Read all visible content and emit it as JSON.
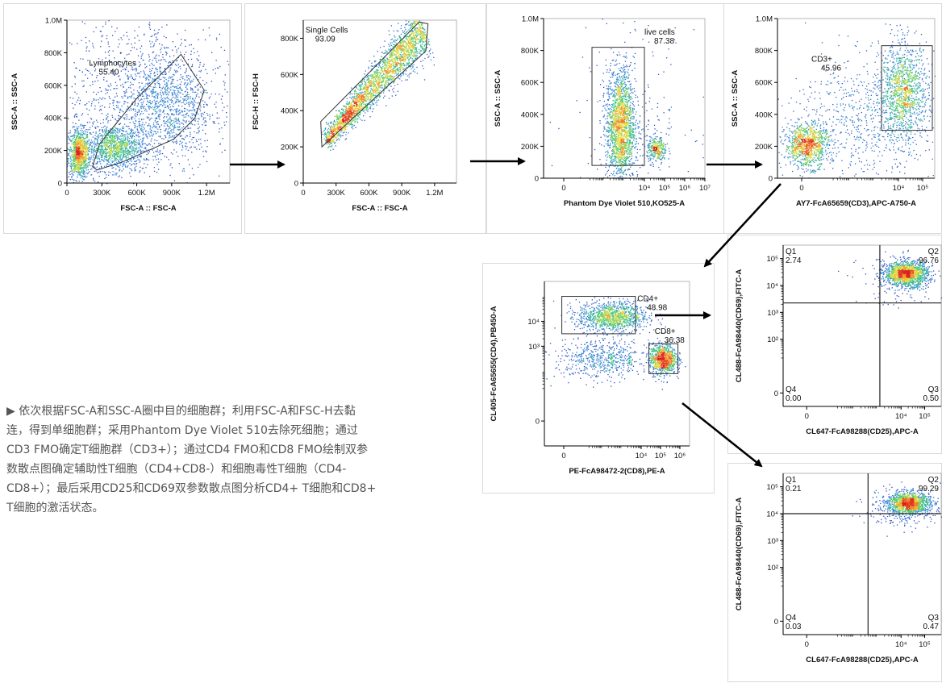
{
  "description": "▶ 依次根据FSC-A和SSC-A圈中目的细胞群；利用FSC-A和FSC-H去黏连，得到单细胞群；采用Phantom Dye Violet 510去除死细胞；通过CD3 FMO确定T细胞群（CD3+）；通过CD4 FMO和CD8 FMO绘制双参数散点图确定辅助性T细胞（CD4+CD8-）和细胞毒性T细胞（CD4-CD8+）；最后采用CD25和CD69双参数散点图分析CD4+ T细胞和CD8+ T细胞的激活状态。",
  "colors": {
    "arrow": "#000000",
    "gate": "#333333",
    "quadrant": "#222222"
  },
  "chart_data": [
    {
      "id": "p1",
      "type": "scatter",
      "xlabel": "FSC-A :: FSC-A",
      "ylabel": "SSC-A :: SSC-A",
      "xscale": "linear",
      "yscale": "linear",
      "xlim": [
        0,
        1400000
      ],
      "ylim": [
        0,
        1000000
      ],
      "xticks": [
        {
          "v": 0,
          "t": "0"
        },
        {
          "v": 300000,
          "t": "300K"
        },
        {
          "v": 600000,
          "t": "600K"
        },
        {
          "v": 900000,
          "t": "900K"
        },
        {
          "v": 1200000,
          "t": "1.2M"
        }
      ],
      "yticks": [
        {
          "v": 0,
          "t": "0"
        },
        {
          "v": 200000,
          "t": "200K"
        },
        {
          "v": 400000,
          "t": "400K"
        },
        {
          "v": 600000,
          "t": "600K"
        },
        {
          "v": 800000,
          "t": "800K"
        },
        {
          "v": 1000000,
          "t": "1.0M"
        }
      ],
      "clusters": [
        {
          "cx": 100000,
          "cy": 180000,
          "sx": 45000,
          "sy": 75000,
          "n": 900
        },
        {
          "cx": 400000,
          "cy": 220000,
          "sx": 130000,
          "sy": 70000,
          "n": 1100
        },
        {
          "cx": 850000,
          "cy": 480000,
          "sx": 200000,
          "sy": 170000,
          "n": 1100
        },
        {
          "cx": 600000,
          "cy": 550000,
          "sx": 400000,
          "sy": 260000,
          "n": 900
        }
      ],
      "gates": [
        {
          "name": "Lymphocytes",
          "value": "55.40",
          "shape": "polygon",
          "points": [
            [
              220000,
              100000
            ],
            [
              280000,
              240000
            ],
            [
              600000,
              520000
            ],
            [
              980000,
              790000
            ],
            [
              1180000,
              570000
            ],
            [
              1100000,
              400000
            ],
            [
              920000,
              270000
            ],
            [
              480000,
              130000
            ],
            [
              260000,
              80000
            ]
          ],
          "label_at": [
            190000,
            720000
          ]
        }
      ]
    },
    {
      "id": "p2",
      "type": "scatter",
      "xlabel": "FSC-A :: FSC-A",
      "ylabel": "FSC-H :: FSC-H",
      "xscale": "linear",
      "yscale": "linear",
      "xlim": [
        0,
        1400000
      ],
      "ylim": [
        0,
        900000
      ],
      "xticks": [
        {
          "v": 0,
          "t": "0"
        },
        {
          "v": 300000,
          "t": "300K"
        },
        {
          "v": 600000,
          "t": "600K"
        },
        {
          "v": 900000,
          "t": "900K"
        },
        {
          "v": 1200000,
          "t": "1.2M"
        }
      ],
      "yticks": [
        {
          "v": 0,
          "t": "0"
        },
        {
          "v": 200000,
          "t": "200K"
        },
        {
          "v": 400000,
          "t": "400K"
        },
        {
          "v": 600000,
          "t": "600K"
        },
        {
          "v": 800000,
          "t": "800K"
        }
      ],
      "diag": {
        "x0": 200000,
        "y0": 230000,
        "x1": 1100000,
        "y1": 860000,
        "spread": 35000,
        "n": 2600
      },
      "gates": [
        {
          "name": "Single Cells",
          "value": "93.09",
          "shape": "polygon",
          "points": [
            [
              170000,
              200000
            ],
            [
              1120000,
              730000
            ],
            [
              1140000,
              880000
            ],
            [
              1060000,
              890000
            ],
            [
              160000,
              340000
            ]
          ],
          "label_at": [
            20000,
            830000
          ]
        }
      ]
    },
    {
      "id": "p3",
      "type": "scatter",
      "xlabel": "Phantom Dye Violet 510,KO525-A",
      "ylabel": "SSC-A :: SSC-A",
      "xscale": "biex",
      "yscale": "linear",
      "xlim": [
        -1,
        7
      ],
      "ylim": [
        0,
        1000000
      ],
      "xticks": [
        {
          "v": 0,
          "t": "0"
        },
        {
          "v": 4,
          "t": "10⁴"
        },
        {
          "v": 5,
          "t": "10⁵"
        },
        {
          "v": 6,
          "t": "10⁶"
        },
        {
          "v": 7,
          "t": "10⁷"
        }
      ],
      "yticks": [
        {
          "v": 0,
          "t": "0"
        },
        {
          "v": 200000,
          "t": "200K"
        },
        {
          "v": 400000,
          "t": "400K"
        },
        {
          "v": 600000,
          "t": "600K"
        },
        {
          "v": 800000,
          "t": "800K"
        },
        {
          "v": 1000000,
          "t": "1.0M"
        }
      ],
      "clusters": [
        {
          "cx": 2.8,
          "cy": 330000,
          "sx": 0.35,
          "sy": 180000,
          "n": 1900
        },
        {
          "cx": 4.6,
          "cy": 180000,
          "sx": 0.25,
          "sy": 40000,
          "n": 300
        },
        {
          "cx": 3.5,
          "cy": 400000,
          "sx": 1.5,
          "sy": 280000,
          "n": 200
        }
      ],
      "gates": [
        {
          "name": "live cells",
          "value": "87.38",
          "shape": "rect",
          "points": [
            [
              1.4,
              80000
            ],
            [
              4.0,
              820000
            ]
          ],
          "label_at": [
            4.0,
            900000
          ]
        }
      ]
    },
    {
      "id": "p4",
      "type": "scatter",
      "xlabel": "AY7-FcA65659(CD3),APC-A750-A",
      "ylabel": "SSC-A :: SSC-A",
      "xscale": "biex",
      "yscale": "linear",
      "xlim": [
        -1,
        5.5
      ],
      "ylim": [
        0,
        1000000
      ],
      "xticks": [
        {
          "v": 0,
          "t": "0"
        },
        {
          "v": 4,
          "t": "10⁴"
        },
        {
          "v": 5,
          "t": "10⁵"
        }
      ],
      "yticks": [
        {
          "v": 0,
          "t": "0"
        },
        {
          "v": 200000,
          "t": "200K"
        },
        {
          "v": 400000,
          "t": "400K"
        },
        {
          "v": 600000,
          "t": "600K"
        },
        {
          "v": 800000,
          "t": "800K"
        },
        {
          "v": 1000000,
          "t": "1.0M"
        }
      ],
      "clusters": [
        {
          "cx": 0.2,
          "cy": 210000,
          "sx": 0.45,
          "sy": 70000,
          "n": 1000
        },
        {
          "cx": 4.2,
          "cy": 540000,
          "sx": 0.5,
          "sy": 150000,
          "n": 1200
        },
        {
          "cx": 2.5,
          "cy": 380000,
          "sx": 1.5,
          "sy": 200000,
          "n": 700
        }
      ],
      "gates": [
        {
          "name": "CD3+",
          "value": "45.96",
          "shape": "rect",
          "points": [
            [
              3.3,
              300000
            ],
            [
              5.4,
              830000
            ]
          ],
          "label_at": [
            0.4,
            730000
          ]
        }
      ]
    },
    {
      "id": "p5",
      "type": "scatter",
      "xlabel": "PE-FcA98472-2(CD8),PE-A",
      "ylabel": "CL405-FcA65655(CD4),PB450-A",
      "xscale": "biex",
      "yscale": "biex",
      "xlim": [
        -1,
        6.5
      ],
      "ylim": [
        -1,
        5.6
      ],
      "xticks": [
        {
          "v": 0,
          "t": "0"
        },
        {
          "v": 4,
          "t": "10⁴"
        },
        {
          "v": 5,
          "t": "10⁵"
        },
        {
          "v": 6,
          "t": "10⁶"
        }
      ],
      "yticks": [
        {
          "v": 0,
          "t": "0"
        },
        {
          "v": 3,
          "t": "10³"
        },
        {
          "v": 4,
          "t": "10⁴"
        }
      ],
      "clusters": [
        {
          "cx": 2.5,
          "cy": 4.2,
          "sx": 0.9,
          "sy": 0.3,
          "n": 1100
        },
        {
          "cx": 5.1,
          "cy": 2.5,
          "sx": 0.35,
          "sy": 0.3,
          "n": 900
        },
        {
          "cx": 2.0,
          "cy": 2.5,
          "sx": 1.2,
          "sy": 0.4,
          "n": 600
        }
      ],
      "gates": [
        {
          "name": "CD4+",
          "value": "48.98",
          "shape": "rect",
          "points": [
            [
              -0.1,
              3.5
            ],
            [
              3.7,
              5.0
            ]
          ],
          "label_at": [
            3.8,
            4.8
          ]
        },
        {
          "name": "CD8+",
          "value": "36.38",
          "shape": "rect",
          "points": [
            [
              4.4,
              1.9
            ],
            [
              5.9,
              3.1
            ]
          ],
          "label_at": [
            4.7,
            3.5
          ]
        }
      ]
    },
    {
      "id": "p6",
      "type": "scatter",
      "xlabel": "CL647-FcA98288(CD25),APC-A",
      "ylabel": "CL488-FcA98440(CD69),FITC-A",
      "xscale": "biex",
      "yscale": "biex",
      "xlim": [
        -1,
        5.7
      ],
      "ylim": [
        -0.5,
        5.5
      ],
      "xticks": [
        {
          "v": 0,
          "t": "0"
        },
        {
          "v": 4,
          "t": "10⁴"
        },
        {
          "v": 5,
          "t": "10⁵"
        }
      ],
      "yticks": [
        {
          "v": 0,
          "t": "0"
        },
        {
          "v": 2,
          "t": "10²"
        },
        {
          "v": 3,
          "t": "10³"
        },
        {
          "v": 4,
          "t": "10⁴"
        },
        {
          "v": 5,
          "t": "10⁵"
        }
      ],
      "clusters": [
        {
          "cx": 4.2,
          "cy": 4.45,
          "sx": 0.45,
          "sy": 0.22,
          "n": 1400
        },
        {
          "cx": 4.0,
          "cy": 4.2,
          "sx": 0.9,
          "sy": 0.45,
          "n": 200
        }
      ],
      "quadrant": {
        "x": 3.1,
        "y": 3.35
      },
      "quadrants": [
        {
          "name": "Q1",
          "value": "2.74",
          "pos": "tl"
        },
        {
          "name": "Q2",
          "value": "96.76",
          "pos": "tr"
        },
        {
          "name": "Q4",
          "value": "0.00",
          "pos": "bl"
        },
        {
          "name": "Q3",
          "value": "0.50",
          "pos": "br"
        }
      ]
    },
    {
      "id": "p7",
      "type": "scatter",
      "xlabel": "CL647-FcA98288(CD25),APC-A",
      "ylabel": "CL488-FcA98440(CD69),FITC-A",
      "xscale": "biex",
      "yscale": "biex",
      "xlim": [
        -1,
        5.7
      ],
      "ylim": [
        -0.5,
        5.5
      ],
      "xticks": [
        {
          "v": 0,
          "t": "0"
        },
        {
          "v": 4,
          "t": "10⁴"
        },
        {
          "v": 5,
          "t": "10⁵"
        }
      ],
      "yticks": [
        {
          "v": 0,
          "t": "0"
        },
        {
          "v": 2,
          "t": "10²"
        },
        {
          "v": 3,
          "t": "10³"
        },
        {
          "v": 4,
          "t": "10⁴"
        },
        {
          "v": 5,
          "t": "10⁵"
        }
      ],
      "clusters": [
        {
          "cx": 4.3,
          "cy": 4.4,
          "sx": 0.45,
          "sy": 0.2,
          "n": 1300
        },
        {
          "cx": 4.1,
          "cy": 4.2,
          "sx": 0.8,
          "sy": 0.4,
          "n": 200
        }
      ],
      "quadrant": {
        "x": 2.6,
        "y": 4.0
      },
      "quadrants": [
        {
          "name": "Q1",
          "value": "0.21",
          "pos": "tl"
        },
        {
          "name": "Q2",
          "value": "99.29",
          "pos": "tr"
        },
        {
          "name": "Q4",
          "value": "0.03",
          "pos": "bl"
        },
        {
          "name": "Q3",
          "value": "0.47",
          "pos": "br"
        }
      ]
    }
  ]
}
